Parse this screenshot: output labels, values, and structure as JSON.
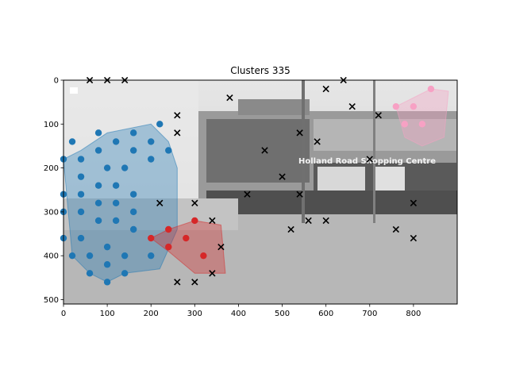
{
  "chart_data": {
    "type": "scatter",
    "title": "Clusters 335",
    "xlabel": "",
    "ylabel": "",
    "xlim": [
      0,
      900
    ],
    "ylim": [
      510,
      0
    ],
    "x_ticks": [
      0,
      100,
      200,
      300,
      400,
      500,
      600,
      700,
      800
    ],
    "y_ticks": [
      0,
      100,
      200,
      300,
      400,
      500
    ],
    "grid": false,
    "legend": "none",
    "background_text": "Holland Road Shopping Centre",
    "clusters": [
      {
        "color": "#1f77b4",
        "hull": [
          [
            0,
            180
          ],
          [
            20,
            400
          ],
          [
            60,
            440
          ],
          [
            100,
            460
          ],
          [
            140,
            440
          ],
          [
            220,
            430
          ],
          [
            260,
            340
          ],
          [
            260,
            200
          ],
          [
            240,
            140
          ],
          [
            200,
            100
          ],
          [
            100,
            120
          ],
          [
            40,
            160
          ],
          [
            0,
            180
          ]
        ],
        "points": [
          [
            20,
            140
          ],
          [
            80,
            120
          ],
          [
            160,
            120
          ],
          [
            220,
            100
          ],
          [
            0,
            180
          ],
          [
            40,
            180
          ],
          [
            80,
            160
          ],
          [
            120,
            140
          ],
          [
            160,
            160
          ],
          [
            200,
            140
          ],
          [
            40,
            220
          ],
          [
            100,
            200
          ],
          [
            140,
            200
          ],
          [
            200,
            180
          ],
          [
            240,
            160
          ],
          [
            0,
            260
          ],
          [
            40,
            260
          ],
          [
            80,
            240
          ],
          [
            120,
            240
          ],
          [
            160,
            260
          ],
          [
            0,
            300
          ],
          [
            40,
            300
          ],
          [
            80,
            280
          ],
          [
            120,
            280
          ],
          [
            160,
            300
          ],
          [
            80,
            320
          ],
          [
            120,
            320
          ],
          [
            160,
            340
          ],
          [
            0,
            360
          ],
          [
            40,
            360
          ],
          [
            100,
            380
          ],
          [
            20,
            400
          ],
          [
            60,
            400
          ],
          [
            100,
            420
          ],
          [
            140,
            400
          ],
          [
            60,
            440
          ],
          [
            100,
            460
          ],
          [
            140,
            440
          ],
          [
            200,
            400
          ]
        ]
      },
      {
        "color": "#d62728",
        "hull": [
          [
            200,
            360
          ],
          [
            240,
            340
          ],
          [
            300,
            320
          ],
          [
            360,
            330
          ],
          [
            370,
            440
          ],
          [
            300,
            440
          ],
          [
            240,
            390
          ],
          [
            200,
            360
          ]
        ],
        "points": [
          [
            200,
            360
          ],
          [
            240,
            340
          ],
          [
            300,
            320
          ],
          [
            240,
            380
          ],
          [
            280,
            360
          ],
          [
            320,
            400
          ]
        ]
      },
      {
        "color": "#f7a1c4",
        "hull": [
          [
            760,
            60
          ],
          [
            800,
            40
          ],
          [
            840,
            20
          ],
          [
            880,
            25
          ],
          [
            870,
            130
          ],
          [
            820,
            150
          ],
          [
            780,
            130
          ],
          [
            760,
            60
          ]
        ],
        "points": [
          [
            840,
            20
          ],
          [
            760,
            60
          ],
          [
            800,
            60
          ],
          [
            780,
            100
          ],
          [
            820,
            100
          ]
        ]
      }
    ],
    "noise_points": [
      [
        60,
        0
      ],
      [
        100,
        0
      ],
      [
        140,
        0
      ],
      [
        260,
        80
      ],
      [
        260,
        120
      ],
      [
        380,
        40
      ],
      [
        460,
        160
      ],
      [
        540,
        120
      ],
      [
        580,
        140
      ],
      [
        600,
        20
      ],
      [
        640,
        0
      ],
      [
        660,
        60
      ],
      [
        720,
        80
      ],
      [
        700,
        180
      ],
      [
        500,
        220
      ],
      [
        540,
        260
      ],
      [
        420,
        260
      ],
      [
        520,
        340
      ],
      [
        560,
        320
      ],
      [
        600,
        320
      ],
      [
        760,
        340
      ],
      [
        800,
        280
      ],
      [
        800,
        360
      ],
      [
        220,
        280
      ],
      [
        300,
        280
      ],
      [
        340,
        320
      ],
      [
        360,
        380
      ],
      [
        260,
        460
      ],
      [
        300,
        460
      ],
      [
        340,
        440
      ]
    ]
  }
}
